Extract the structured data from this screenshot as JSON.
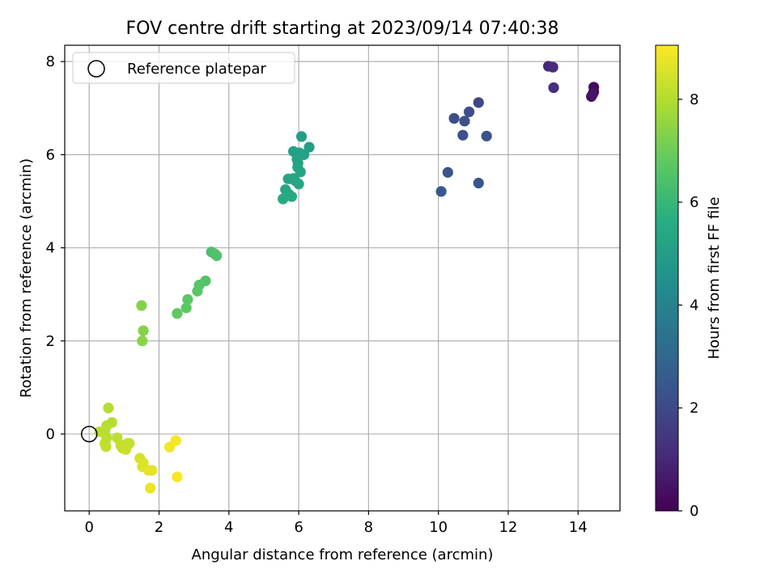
{
  "chart_data": {
    "type": "scatter",
    "title": "FOV centre drift starting at 2023/09/14 07:40:38",
    "xlabel": "Angular distance from reference (arcmin)",
    "ylabel": "Rotation from reference (arcmin)",
    "xlim": [
      -0.7,
      15.2
    ],
    "ylim": [
      -1.65,
      8.35
    ],
    "x_ticks": [
      0,
      2,
      4,
      6,
      8,
      10,
      12,
      14
    ],
    "y_ticks": [
      0,
      2,
      4,
      6,
      8
    ],
    "grid": true,
    "legend": {
      "position": "top-left",
      "entries": [
        "Reference platepar"
      ]
    },
    "reference_point": {
      "x": 0,
      "y": 0
    },
    "colorbar": {
      "label": "Hours from first FF file",
      "range": [
        0,
        9.05
      ],
      "ticks": [
        0,
        2,
        4,
        6,
        8
      ],
      "colormap": "viridis"
    },
    "series": [
      {
        "points": [
          {
            "x": 14.45,
            "y": 7.45,
            "h": 0.2
          },
          {
            "x": 14.45,
            "y": 7.35,
            "h": 0.3
          },
          {
            "x": 14.38,
            "y": 7.25,
            "h": 0.4
          },
          {
            "x": 14.42,
            "y": 7.3,
            "h": 0.5
          },
          {
            "x": 13.15,
            "y": 7.9,
            "h": 1.0
          },
          {
            "x": 13.28,
            "y": 7.88,
            "h": 1.1
          },
          {
            "x": 13.3,
            "y": 7.44,
            "h": 1.2
          },
          {
            "x": 11.15,
            "y": 7.12,
            "h": 2.0
          },
          {
            "x": 10.88,
            "y": 6.92,
            "h": 2.1
          },
          {
            "x": 10.45,
            "y": 6.78,
            "h": 2.15
          },
          {
            "x": 10.75,
            "y": 6.72,
            "h": 2.2
          },
          {
            "x": 10.7,
            "y": 6.42,
            "h": 2.25
          },
          {
            "x": 11.38,
            "y": 6.4,
            "h": 2.3
          },
          {
            "x": 10.27,
            "y": 5.62,
            "h": 2.35
          },
          {
            "x": 11.15,
            "y": 5.39,
            "h": 2.4
          },
          {
            "x": 10.08,
            "y": 5.21,
            "h": 2.5
          },
          {
            "x": 6.08,
            "y": 6.39,
            "h": 5.0
          },
          {
            "x": 6.3,
            "y": 6.16,
            "h": 5.05
          },
          {
            "x": 5.85,
            "y": 6.07,
            "h": 5.1
          },
          {
            "x": 6.02,
            "y": 6.04,
            "h": 5.1
          },
          {
            "x": 6.15,
            "y": 6.0,
            "h": 5.15
          },
          {
            "x": 5.95,
            "y": 5.9,
            "h": 5.2
          },
          {
            "x": 5.98,
            "y": 5.82,
            "h": 5.2
          },
          {
            "x": 5.97,
            "y": 5.73,
            "h": 5.25
          },
          {
            "x": 6.05,
            "y": 5.63,
            "h": 5.3
          },
          {
            "x": 5.7,
            "y": 5.48,
            "h": 5.3
          },
          {
            "x": 5.85,
            "y": 5.49,
            "h": 5.35
          },
          {
            "x": 5.9,
            "y": 5.44,
            "h": 5.35
          },
          {
            "x": 6.0,
            "y": 5.37,
            "h": 5.4
          },
          {
            "x": 5.62,
            "y": 5.25,
            "h": 5.4
          },
          {
            "x": 5.72,
            "y": 5.15,
            "h": 5.45
          },
          {
            "x": 5.8,
            "y": 5.1,
            "h": 5.5
          },
          {
            "x": 5.55,
            "y": 5.05,
            "h": 5.5
          },
          {
            "x": 3.5,
            "y": 3.91,
            "h": 6.4
          },
          {
            "x": 3.6,
            "y": 3.87,
            "h": 6.45
          },
          {
            "x": 3.65,
            "y": 3.83,
            "h": 6.5
          },
          {
            "x": 3.33,
            "y": 3.29,
            "h": 6.55
          },
          {
            "x": 3.15,
            "y": 3.2,
            "h": 6.6
          },
          {
            "x": 3.1,
            "y": 3.07,
            "h": 6.65
          },
          {
            "x": 2.82,
            "y": 2.89,
            "h": 6.7
          },
          {
            "x": 2.78,
            "y": 2.71,
            "h": 6.75
          },
          {
            "x": 2.52,
            "y": 2.59,
            "h": 6.8
          },
          {
            "x": 1.5,
            "y": 2.76,
            "h": 7.3
          },
          {
            "x": 1.55,
            "y": 2.22,
            "h": 7.35
          },
          {
            "x": 1.52,
            "y": 2.0,
            "h": 7.4
          },
          {
            "x": 0.55,
            "y": 0.56,
            "h": 8.0
          },
          {
            "x": 0.65,
            "y": 0.25,
            "h": 8.05
          },
          {
            "x": 0.5,
            "y": 0.18,
            "h": 8.05
          },
          {
            "x": 0.3,
            "y": 0.05,
            "h": 8.1
          },
          {
            "x": 0.45,
            "y": 0.05,
            "h": 8.1
          },
          {
            "x": 0.5,
            "y": -0.08,
            "h": 8.1
          },
          {
            "x": 0.8,
            "y": -0.08,
            "h": 8.15
          },
          {
            "x": 0.45,
            "y": -0.2,
            "h": 8.15
          },
          {
            "x": 0.48,
            "y": -0.27,
            "h": 8.2
          },
          {
            "x": 0.9,
            "y": -0.24,
            "h": 8.2
          },
          {
            "x": 1.1,
            "y": -0.2,
            "h": 8.2
          },
          {
            "x": 1.15,
            "y": -0.2,
            "h": 8.25
          },
          {
            "x": 0.95,
            "y": -0.3,
            "h": 8.25
          },
          {
            "x": 1.05,
            "y": -0.33,
            "h": 8.3
          },
          {
            "x": 1.45,
            "y": -0.52,
            "h": 8.5
          },
          {
            "x": 1.55,
            "y": -0.62,
            "h": 8.55
          },
          {
            "x": 1.52,
            "y": -0.7,
            "h": 8.6
          },
          {
            "x": 1.7,
            "y": -0.78,
            "h": 8.65
          },
          {
            "x": 1.8,
            "y": -0.78,
            "h": 8.7
          },
          {
            "x": 1.75,
            "y": -1.16,
            "h": 8.8
          },
          {
            "x": 2.3,
            "y": -0.28,
            "h": 8.9
          },
          {
            "x": 2.48,
            "y": -0.14,
            "h": 8.95
          },
          {
            "x": 2.52,
            "y": -0.92,
            "h": 9.0
          }
        ]
      }
    ]
  }
}
